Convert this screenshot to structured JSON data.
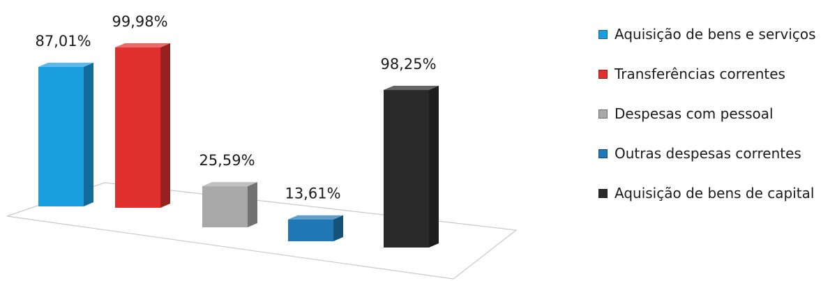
{
  "chart_data": {
    "type": "bar",
    "title": "",
    "xlabel": "",
    "ylabel": "",
    "ylim": [
      0,
      100
    ],
    "grid": false,
    "legend_position": "right",
    "categories": [
      "Aquisição de bens e serviços",
      "Transferências correntes",
      "Despesas com pessoal",
      "Outras despesas correntes",
      "Aquisição de bens de capital"
    ],
    "values": [
      87.01,
      99.98,
      25.59,
      13.61,
      98.25
    ],
    "value_labels": [
      "87,01%",
      "99,98%",
      "25,59%",
      "13,61%",
      "98,25%"
    ],
    "colors": [
      "#1b9ee0",
      "#e0302d",
      "#a8a8a8",
      "#1f78b4",
      "#2a2a2a"
    ]
  }
}
